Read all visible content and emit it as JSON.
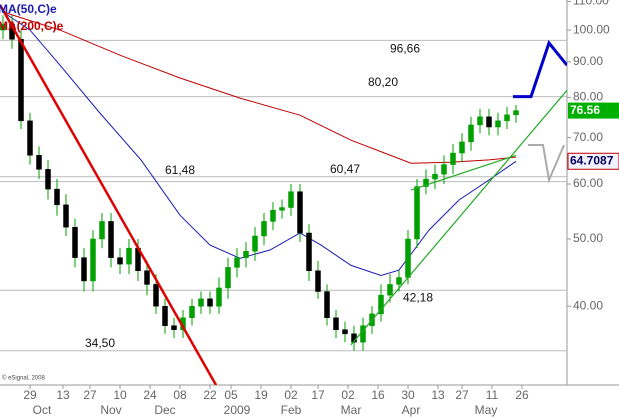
{
  "chart_data": {
    "type": "candlestick",
    "log_scale": true,
    "xlim": [
      -10,
      179
    ],
    "ylim": [
      30.8,
      110.5
    ],
    "yticks": [
      {
        "value": 110,
        "label": "110.00"
      },
      {
        "value": 100,
        "label": "100.00"
      },
      {
        "value": 90,
        "label": "90.00"
      },
      {
        "value": 80,
        "label": "80.00"
      },
      {
        "value": 70,
        "label": "70.00"
      },
      {
        "value": 60,
        "label": "60.00"
      },
      {
        "value": 50,
        "label": "50.00"
      },
      {
        "value": 40,
        "label": "40.00"
      }
    ],
    "xticks": [
      {
        "value": 0,
        "label": "29"
      },
      {
        "value": 11,
        "label": "13"
      },
      {
        "value": 20,
        "label": "27"
      },
      {
        "value": 30,
        "label": "10"
      },
      {
        "value": 40,
        "label": "24"
      },
      {
        "value": 50,
        "label": "08"
      },
      {
        "value": 60,
        "label": "22"
      },
      {
        "value": 67,
        "label": "05"
      },
      {
        "value": 77,
        "label": "19"
      },
      {
        "value": 87,
        "label": "02"
      },
      {
        "value": 96,
        "label": "17"
      },
      {
        "value": 106,
        "label": "02"
      },
      {
        "value": 116,
        "label": "16"
      },
      {
        "value": 126,
        "label": "30"
      },
      {
        "value": 136,
        "label": "13"
      },
      {
        "value": 144,
        "label": "27"
      },
      {
        "value": 154,
        "label": "11"
      },
      {
        "value": 164,
        "label": "26"
      }
    ],
    "period_labels": [
      {
        "value": 4,
        "label": "Oct"
      },
      {
        "value": 27,
        "label": "Nov"
      },
      {
        "value": 45,
        "label": "Dec"
      },
      {
        "value": 69,
        "label": "2009"
      },
      {
        "value": 87,
        "label": "Feb"
      },
      {
        "value": 107,
        "label": "Mar"
      },
      {
        "value": 127,
        "label": "Apr"
      },
      {
        "value": 152,
        "label": "May"
      }
    ],
    "up_color": "#00a000",
    "down_color": "#000000",
    "candles": {
      "x": [
        -9,
        -6,
        -3,
        0,
        3,
        6,
        9,
        12,
        15,
        18,
        21,
        24,
        27,
        30,
        33,
        36,
        39,
        42,
        45,
        48,
        51,
        54,
        57,
        60,
        63,
        66,
        69,
        72,
        75,
        78,
        81,
        84,
        87,
        90,
        93,
        96,
        99,
        102,
        105,
        108,
        111,
        114,
        117,
        120,
        123,
        126,
        129,
        132,
        135,
        138,
        141,
        144,
        147,
        150,
        153,
        156,
        159,
        162
      ],
      "open": [
        100,
        102,
        97,
        74,
        66,
        63,
        59,
        56,
        52,
        47,
        43.5,
        50,
        53,
        47,
        46,
        48.5,
        45,
        43,
        40,
        37.5,
        37,
        38.5,
        40,
        41,
        40,
        42.5,
        45.5,
        47,
        48,
        50.5,
        53,
        55,
        55.5,
        58.5,
        51,
        45,
        42,
        38.5,
        37,
        36.5,
        35.5,
        37.5,
        39,
        41.5,
        43,
        44,
        50,
        59.5,
        61,
        62,
        64,
        66.5,
        69,
        73,
        75,
        72.5,
        74,
        75.5
      ],
      "high": [
        105,
        105,
        100,
        76,
        68,
        65,
        61,
        58,
        53.5,
        48.5,
        51.5,
        54.5,
        54.5,
        48.5,
        50,
        50,
        46.5,
        44.5,
        41,
        38.5,
        39.5,
        41,
        42,
        42,
        44,
        47,
        48.5,
        49.5,
        52,
        54.5,
        56.5,
        57,
        60,
        60,
        52.5,
        46.5,
        43,
        39.5,
        38,
        37.5,
        38.5,
        40,
        43,
        44.5,
        45,
        51.5,
        61,
        63,
        64,
        66,
        68.5,
        71,
        75,
        77,
        77,
        76,
        77.5,
        78
      ],
      "low": [
        97,
        94,
        72,
        64,
        61,
        57,
        54,
        50.5,
        45.5,
        42,
        42,
        48.5,
        45.5,
        44.5,
        44.5,
        43.5,
        41.5,
        39,
        36.5,
        36,
        36,
        37.5,
        39,
        39,
        39,
        41,
        44,
        45.5,
        46.5,
        49,
        51.5,
        53.5,
        54,
        49.5,
        43.5,
        41,
        37.5,
        36,
        35.5,
        34.5,
        34.5,
        36.5,
        38,
        40.5,
        42,
        43,
        48.5,
        58,
        59,
        60,
        62,
        64.5,
        67,
        71,
        70.5,
        70.5,
        72,
        73.5
      ],
      "close": [
        102,
        97,
        74,
        66,
        63,
        59,
        56,
        52,
        47,
        43.5,
        50,
        53,
        47,
        46,
        48.5,
        45,
        43,
        40,
        37.5,
        37,
        38.5,
        40,
        41,
        40,
        42.5,
        45.5,
        47,
        48,
        50.5,
        53,
        55,
        55.5,
        58.5,
        51,
        45,
        42,
        38.5,
        37,
        36.5,
        35.5,
        37.5,
        39,
        41.5,
        43,
        44,
        50,
        59.5,
        61,
        62,
        64,
        66.5,
        69,
        73,
        75,
        72.5,
        74,
        75.5,
        76.56
      ]
    },
    "series": [
      {
        "name": "MA(50,C)e",
        "color": "#1a1ab0",
        "x": [
          -9,
          0,
          10,
          23,
          37,
          50,
          60,
          70,
          80,
          90,
          97,
          107,
          117,
          123,
          133,
          143,
          153,
          162
        ],
        "values": [
          106.2,
          100,
          89,
          76.2,
          65,
          54.1,
          49,
          46.9,
          48.2,
          51,
          49,
          45.8,
          44.3,
          45.1,
          51.5,
          56.9,
          60.8,
          64.71
        ]
      },
      {
        "name": "MA(200,C)e",
        "color": "#c00000",
        "x": [
          -9,
          10,
          30,
          50,
          70,
          90,
          107,
          127,
          140,
          153,
          162
        ],
        "values": [
          106.2,
          100,
          92,
          85.3,
          79.8,
          75.4,
          69.4,
          64.3,
          64.5,
          65,
          65.6
        ]
      }
    ],
    "trendlines": [
      {
        "color": "#e00000",
        "width": 2.5,
        "x": [
          -10,
          62
        ],
        "values": [
          108.7,
          30.8
        ]
      },
      {
        "color": "#22aa22",
        "width": 1.2,
        "x": [
          107,
          179
        ],
        "values": [
          35.2,
          81.9
        ]
      },
      {
        "color": "#22aa22",
        "width": 1.2,
        "x": [
          127,
          162
        ],
        "values": [
          58.8,
          66
        ]
      },
      {
        "color": "#0000cc",
        "width": 3,
        "x": [
          161,
          167,
          173,
          179
        ],
        "values": [
          80.2,
          80.2,
          95.8,
          89
        ]
      },
      {
        "color": "#aaaaaa",
        "width": 2,
        "x": [
          166,
          171,
          173,
          178
        ],
        "values": [
          68.3,
          68.3,
          60.8,
          68.3
        ]
      }
    ],
    "levels": [
      {
        "value": 96.66,
        "label": "96,66"
      },
      {
        "value": 80.2,
        "label": "80,20"
      },
      {
        "value": 61.48,
        "label": "61,48"
      },
      {
        "value": 60.47,
        "label": "60,47"
      },
      {
        "value": 42.18,
        "label": "42,18"
      },
      {
        "value": 34.5,
        "label": "34,50"
      }
    ],
    "last_prices": [
      {
        "value": 76.56,
        "label": "76.56",
        "fill": "#00b000",
        "text_color": "#ffffff"
      },
      {
        "value": 64.7087,
        "label": "64.7087",
        "fill": "#f2f2ff",
        "text_color": "#000060"
      }
    ],
    "copyright": "© eSignal, 2008"
  }
}
